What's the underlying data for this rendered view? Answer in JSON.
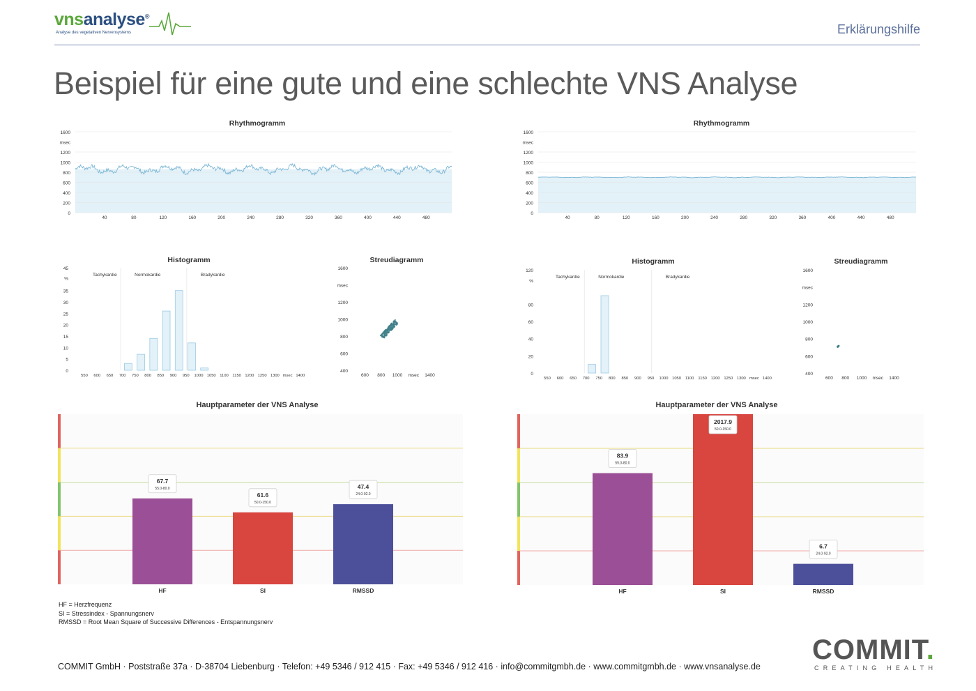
{
  "header": {
    "logo_vns": "vns",
    "logo_analyse": "analyse",
    "logo_reg": "®",
    "logo_sub": "Analyse des vegetativen Nervensystems",
    "help": "Erklärungshilfe"
  },
  "title": "Beispiel für eine gute und eine schlechte VNS Analyse",
  "legend": {
    "hf": "HF = Herzfrequenz",
    "si": "SI = Stressindex - Spannungsnerv",
    "rmssd": "RMSSD = Root Mean Square of Successive Differences - Entspannungsnerv"
  },
  "footer": {
    "address": "COMMIT GmbH · Poststraße 37a · D-38704 Liebenburg · Telefon: +49 5346 / 912 415 · Fax: +49 5346 / 912 416 · info@commitgmbh.de · www.commitgmbh.de · www.vnsanalyse.de",
    "brand": "COMMIT",
    "brand_dot": ".",
    "tagline": "CREATING HEALTH"
  },
  "colors": {
    "green": "#5aa83a",
    "navy": "#2b4f80",
    "purple": "#9b4f96",
    "red": "#d9453f",
    "blue": "#4c509a",
    "line": "#7db7d6",
    "fill": "#e3f1f8"
  },
  "chart_data": [
    {
      "id": "rhythm-good",
      "type": "line",
      "panel": "good",
      "title": "Rhythmogramm",
      "ylabel": "msec",
      "yticks": [
        0,
        200,
        400,
        600,
        800,
        1000,
        1200,
        1600
      ],
      "xticks": [
        40,
        80,
        120,
        160,
        200,
        240,
        280,
        320,
        360,
        400,
        440,
        480
      ],
      "xlim": [
        0,
        515
      ],
      "ylim": [
        0,
        1600
      ],
      "series": [
        {
          "mean": 860,
          "amplitude": 90
        }
      ]
    },
    {
      "id": "rhythm-bad",
      "type": "line",
      "panel": "bad",
      "title": "Rhythmogramm",
      "ylabel": "msec",
      "yticks": [
        0,
        200,
        400,
        600,
        800,
        1000,
        1200,
        1600
      ],
      "xticks": [
        40,
        80,
        120,
        160,
        200,
        240,
        280,
        320,
        360,
        400,
        440,
        480
      ],
      "xlim": [
        0,
        515
      ],
      "ylim": [
        0,
        1600
      ],
      "series": [
        {
          "mean": 700,
          "amplitude": 8
        }
      ]
    },
    {
      "id": "hist-good",
      "type": "bar",
      "panel": "good",
      "title": "Histogramm",
      "ylabel": "%",
      "zones": [
        "Tachykardie",
        "Normokardie",
        "Bradykardie"
      ],
      "yticks": [
        0,
        5,
        10,
        15,
        20,
        25,
        30,
        35,
        45
      ],
      "ylim": [
        0,
        45
      ],
      "categories": [
        "550",
        "600",
        "650",
        "700",
        "750",
        "800",
        "850",
        "900",
        "950",
        "1000",
        "1050",
        "1100",
        "1150",
        "1200",
        "1250",
        "1300",
        "msec",
        "1400"
      ],
      "values": [
        0,
        0,
        0,
        3,
        7,
        14,
        26,
        35,
        12,
        1,
        0,
        0,
        0,
        0,
        0,
        0,
        0,
        0
      ]
    },
    {
      "id": "hist-bad",
      "type": "bar",
      "panel": "bad",
      "title": "Histogramm",
      "ylabel": "%",
      "zones": [
        "Tachykardie",
        "Normokardie",
        "Bradykardie"
      ],
      "yticks": [
        0,
        20,
        40,
        60,
        80,
        120
      ],
      "ylim": [
        0,
        120
      ],
      "categories": [
        "550",
        "600",
        "650",
        "700",
        "750",
        "800",
        "850",
        "900",
        "950",
        "1000",
        "1050",
        "1100",
        "1150",
        "1200",
        "1250",
        "1300",
        "msec",
        "1400"
      ],
      "values": [
        0,
        0,
        0,
        10,
        90,
        0,
        0,
        0,
        0,
        0,
        0,
        0,
        0,
        0,
        0,
        0,
        0,
        0
      ]
    },
    {
      "id": "scatter-good",
      "type": "scatter",
      "panel": "good",
      "title": "Streudiagramm",
      "ylabel": "msec",
      "yticks": [
        400,
        600,
        800,
        1000,
        1200,
        1600
      ],
      "xticks": [
        "600",
        "800",
        "1000",
        "msec",
        "1400"
      ],
      "xlim": [
        450,
        1550
      ],
      "ylim": [
        400,
        1600
      ],
      "cluster": {
        "cx": 900,
        "cy": 880,
        "spread": 90,
        "n": 160
      }
    },
    {
      "id": "scatter-bad",
      "type": "scatter",
      "panel": "bad",
      "title": "Streudiagramm",
      "ylabel": "msec",
      "yticks": [
        400,
        600,
        800,
        1000,
        1200,
        1600
      ],
      "xticks": [
        "600",
        "800",
        "1000",
        "msec",
        "1400"
      ],
      "xlim": [
        450,
        1550
      ],
      "ylim": [
        400,
        1600
      ],
      "cluster": {
        "cx": 710,
        "cy": 710,
        "spread": 8,
        "n": 40
      }
    },
    {
      "id": "params-good",
      "type": "bar",
      "panel": "good",
      "title": "Hauptparameter der VNS Analyse",
      "categories": [
        "HF",
        "SI",
        "RMSSD"
      ],
      "values": [
        67.7,
        61.6,
        47.4
      ],
      "labels": [
        "67.7",
        "61.6",
        "47.4"
      ],
      "ranges": [
        "55.0-80.0",
        "50.0-150.0",
        "24.0-92.0"
      ],
      "level": [
        0.505,
        0.423,
        0.471
      ]
    },
    {
      "id": "params-bad",
      "type": "bar",
      "panel": "bad",
      "title": "Hauptparameter der VNS Analyse",
      "categories": [
        "HF",
        "SI",
        "RMSSD"
      ],
      "values": [
        83.9,
        2017.9,
        6.7
      ],
      "labels": [
        "83.9",
        "2017.9",
        "6.7"
      ],
      "ranges": [
        "55.0-80.0",
        "50.0-150.0",
        "24.0-92.0"
      ],
      "level": [
        0.655,
        1.0,
        0.124
      ]
    }
  ]
}
